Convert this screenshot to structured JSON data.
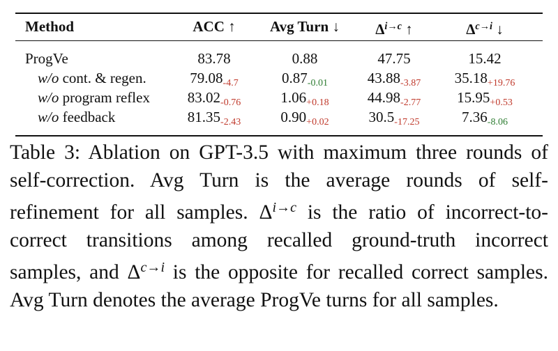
{
  "table": {
    "headers": [
      "Method",
      "ACC ↑",
      "Avg Turn ↓",
      {
        "base": "Δ",
        "sup": "i→c",
        "arrow": "↑"
      },
      {
        "base": "Δ",
        "sup": "c→i",
        "arrow": "↓"
      }
    ],
    "rows": [
      {
        "label": {
          "text": "ProgVe"
        },
        "cells": [
          {
            "value": "83.78"
          },
          {
            "value": "0.88"
          },
          {
            "value": "47.75"
          },
          {
            "value": "15.42"
          }
        ]
      },
      {
        "label": {
          "italic": "w/o",
          "text": "cont. & regen."
        },
        "cells": [
          {
            "value": "79.08",
            "delta": "-4.7",
            "color": "#c0392b"
          },
          {
            "value": "0.87",
            "delta": "-0.01",
            "color": "#2e7d32"
          },
          {
            "value": "43.88",
            "delta": "-3.87",
            "color": "#c0392b"
          },
          {
            "value": "35.18",
            "delta": "+19.76",
            "color": "#c0392b"
          }
        ]
      },
      {
        "label": {
          "italic": "w/o",
          "text": "program reflex"
        },
        "cells": [
          {
            "value": "83.02",
            "delta": "-0.76",
            "color": "#c0392b"
          },
          {
            "value": "1.06",
            "delta": "+0.18",
            "color": "#c0392b"
          },
          {
            "value": "44.98",
            "delta": "-2.77",
            "color": "#c0392b"
          },
          {
            "value": "15.95",
            "delta": "+0.53",
            "color": "#c0392b"
          }
        ]
      },
      {
        "label": {
          "italic": "w/o",
          "text": "feedback"
        },
        "cells": [
          {
            "value": "81.35",
            "delta": "-2.43",
            "color": "#c0392b"
          },
          {
            "value": "0.90",
            "delta": "+0.02",
            "color": "#c0392b"
          },
          {
            "value": "30.5",
            "delta": "-17.25",
            "color": "#c0392b"
          },
          {
            "value": "7.36",
            "delta": "-8.06",
            "color": "#2e7d32"
          }
        ]
      }
    ]
  },
  "caption": [
    "Table 3: Ablation on GPT-3.5 with maximum three rounds of self-correction. Avg Turn is the average rounds of self-refinement for all samples. ",
    {
      "base": "Δ",
      "sup": "i→c"
    },
    " is the ratio of incorrect-to-correct transitions among recalled ground-truth incorrect samples, and ",
    {
      "base": "Δ",
      "sup": "c→i"
    },
    " is the opposite for recalled correct samples. Avg Turn denotes the average ProgVe turns for all samples."
  ]
}
